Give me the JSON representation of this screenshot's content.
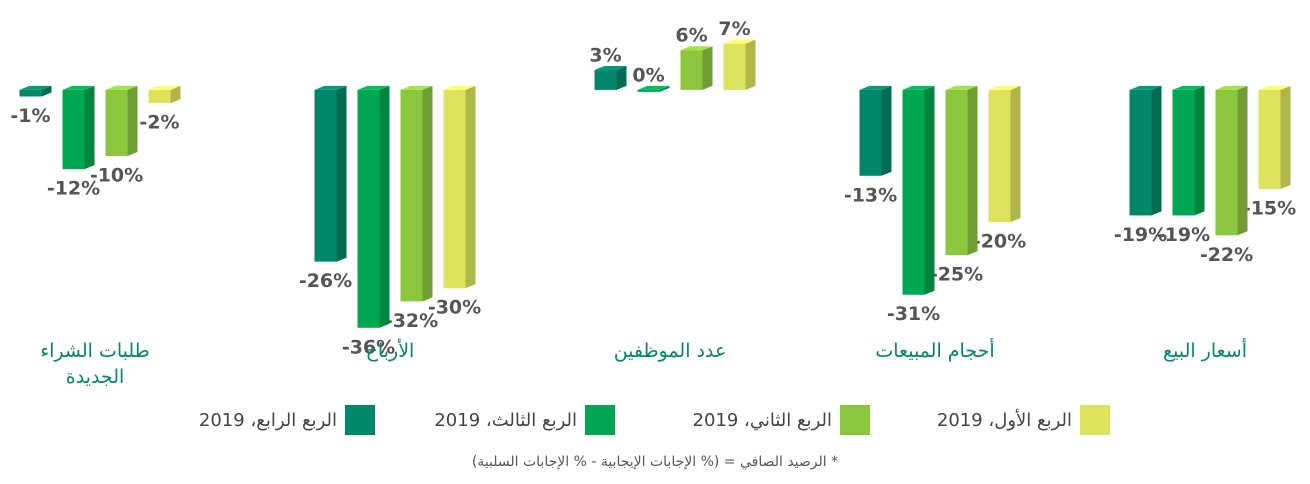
{
  "chart_data": {
    "type": "bar3d",
    "categories": [
      "أسعار البيع",
      "أحجام المبيعات",
      "عدد الموظفين",
      "الأرباح",
      "طلبات الشراء الجديدة"
    ],
    "series": [
      {
        "name": "الربع الأول، 2019",
        "color": "#dde35c",
        "values": [
          -15,
          -20,
          7,
          -30,
          -2
        ],
        "value_labels": [
          "-15%",
          "-20%",
          "7%",
          "-30%",
          "-2%"
        ]
      },
      {
        "name": "الربع الثاني، 2019",
        "color": "#8cc63f",
        "values": [
          -22,
          -25,
          6,
          -32,
          -10
        ],
        "value_labels": [
          "-22%",
          "-25%",
          "6%",
          "-32%",
          "-10%"
        ]
      },
      {
        "name": "الربع الثالث، 2019",
        "color": "#00a651",
        "values": [
          -19,
          -31,
          0,
          -36,
          -12
        ],
        "value_labels": [
          "-19%",
          "-31%",
          "0%",
          "-36%",
          "-12%"
        ]
      },
      {
        "name": "الربع الرابع، 2019",
        "color": "#00876a",
        "values": [
          -19,
          -13,
          3,
          -26,
          -1
        ],
        "value_labels": [
          "-19%",
          "-13%",
          "3%",
          "-26%",
          "-1%"
        ]
      }
    ],
    "ylim": [
      -38,
      8
    ],
    "footnote": "* الرصيد الصافي = (% الإجابات الإيجابية - % الإجابات السلبية)"
  }
}
